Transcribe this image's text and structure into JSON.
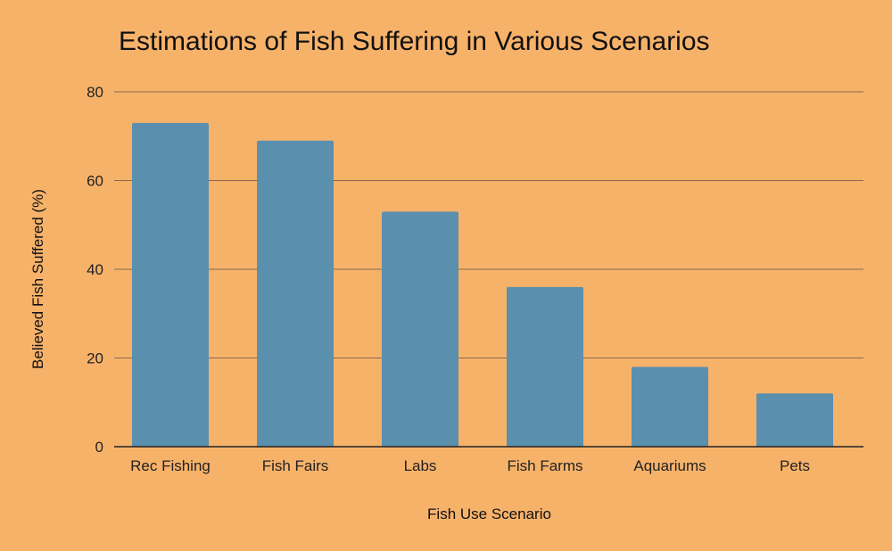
{
  "chart_data": {
    "type": "bar",
    "title": "Estimations of Fish Suffering in Various Scenarios",
    "xlabel": "Fish Use Scenario",
    "ylabel": "Believed Fish Suffered (%)",
    "categories": [
      "Rec Fishing",
      "Fish Fairs",
      "Labs",
      "Fish Farms",
      "Aquariums",
      "Pets"
    ],
    "values": [
      73,
      69,
      53,
      36,
      18,
      12
    ],
    "ylim": [
      0,
      80
    ],
    "yticks": [
      0,
      20,
      40,
      60,
      80
    ],
    "grid": true,
    "legend": "none",
    "colors": {
      "background": "#F7B26A",
      "bar": "#5B8FAE",
      "grid": "#8A6A4A",
      "axis": "#222222",
      "text": "#111111"
    }
  }
}
